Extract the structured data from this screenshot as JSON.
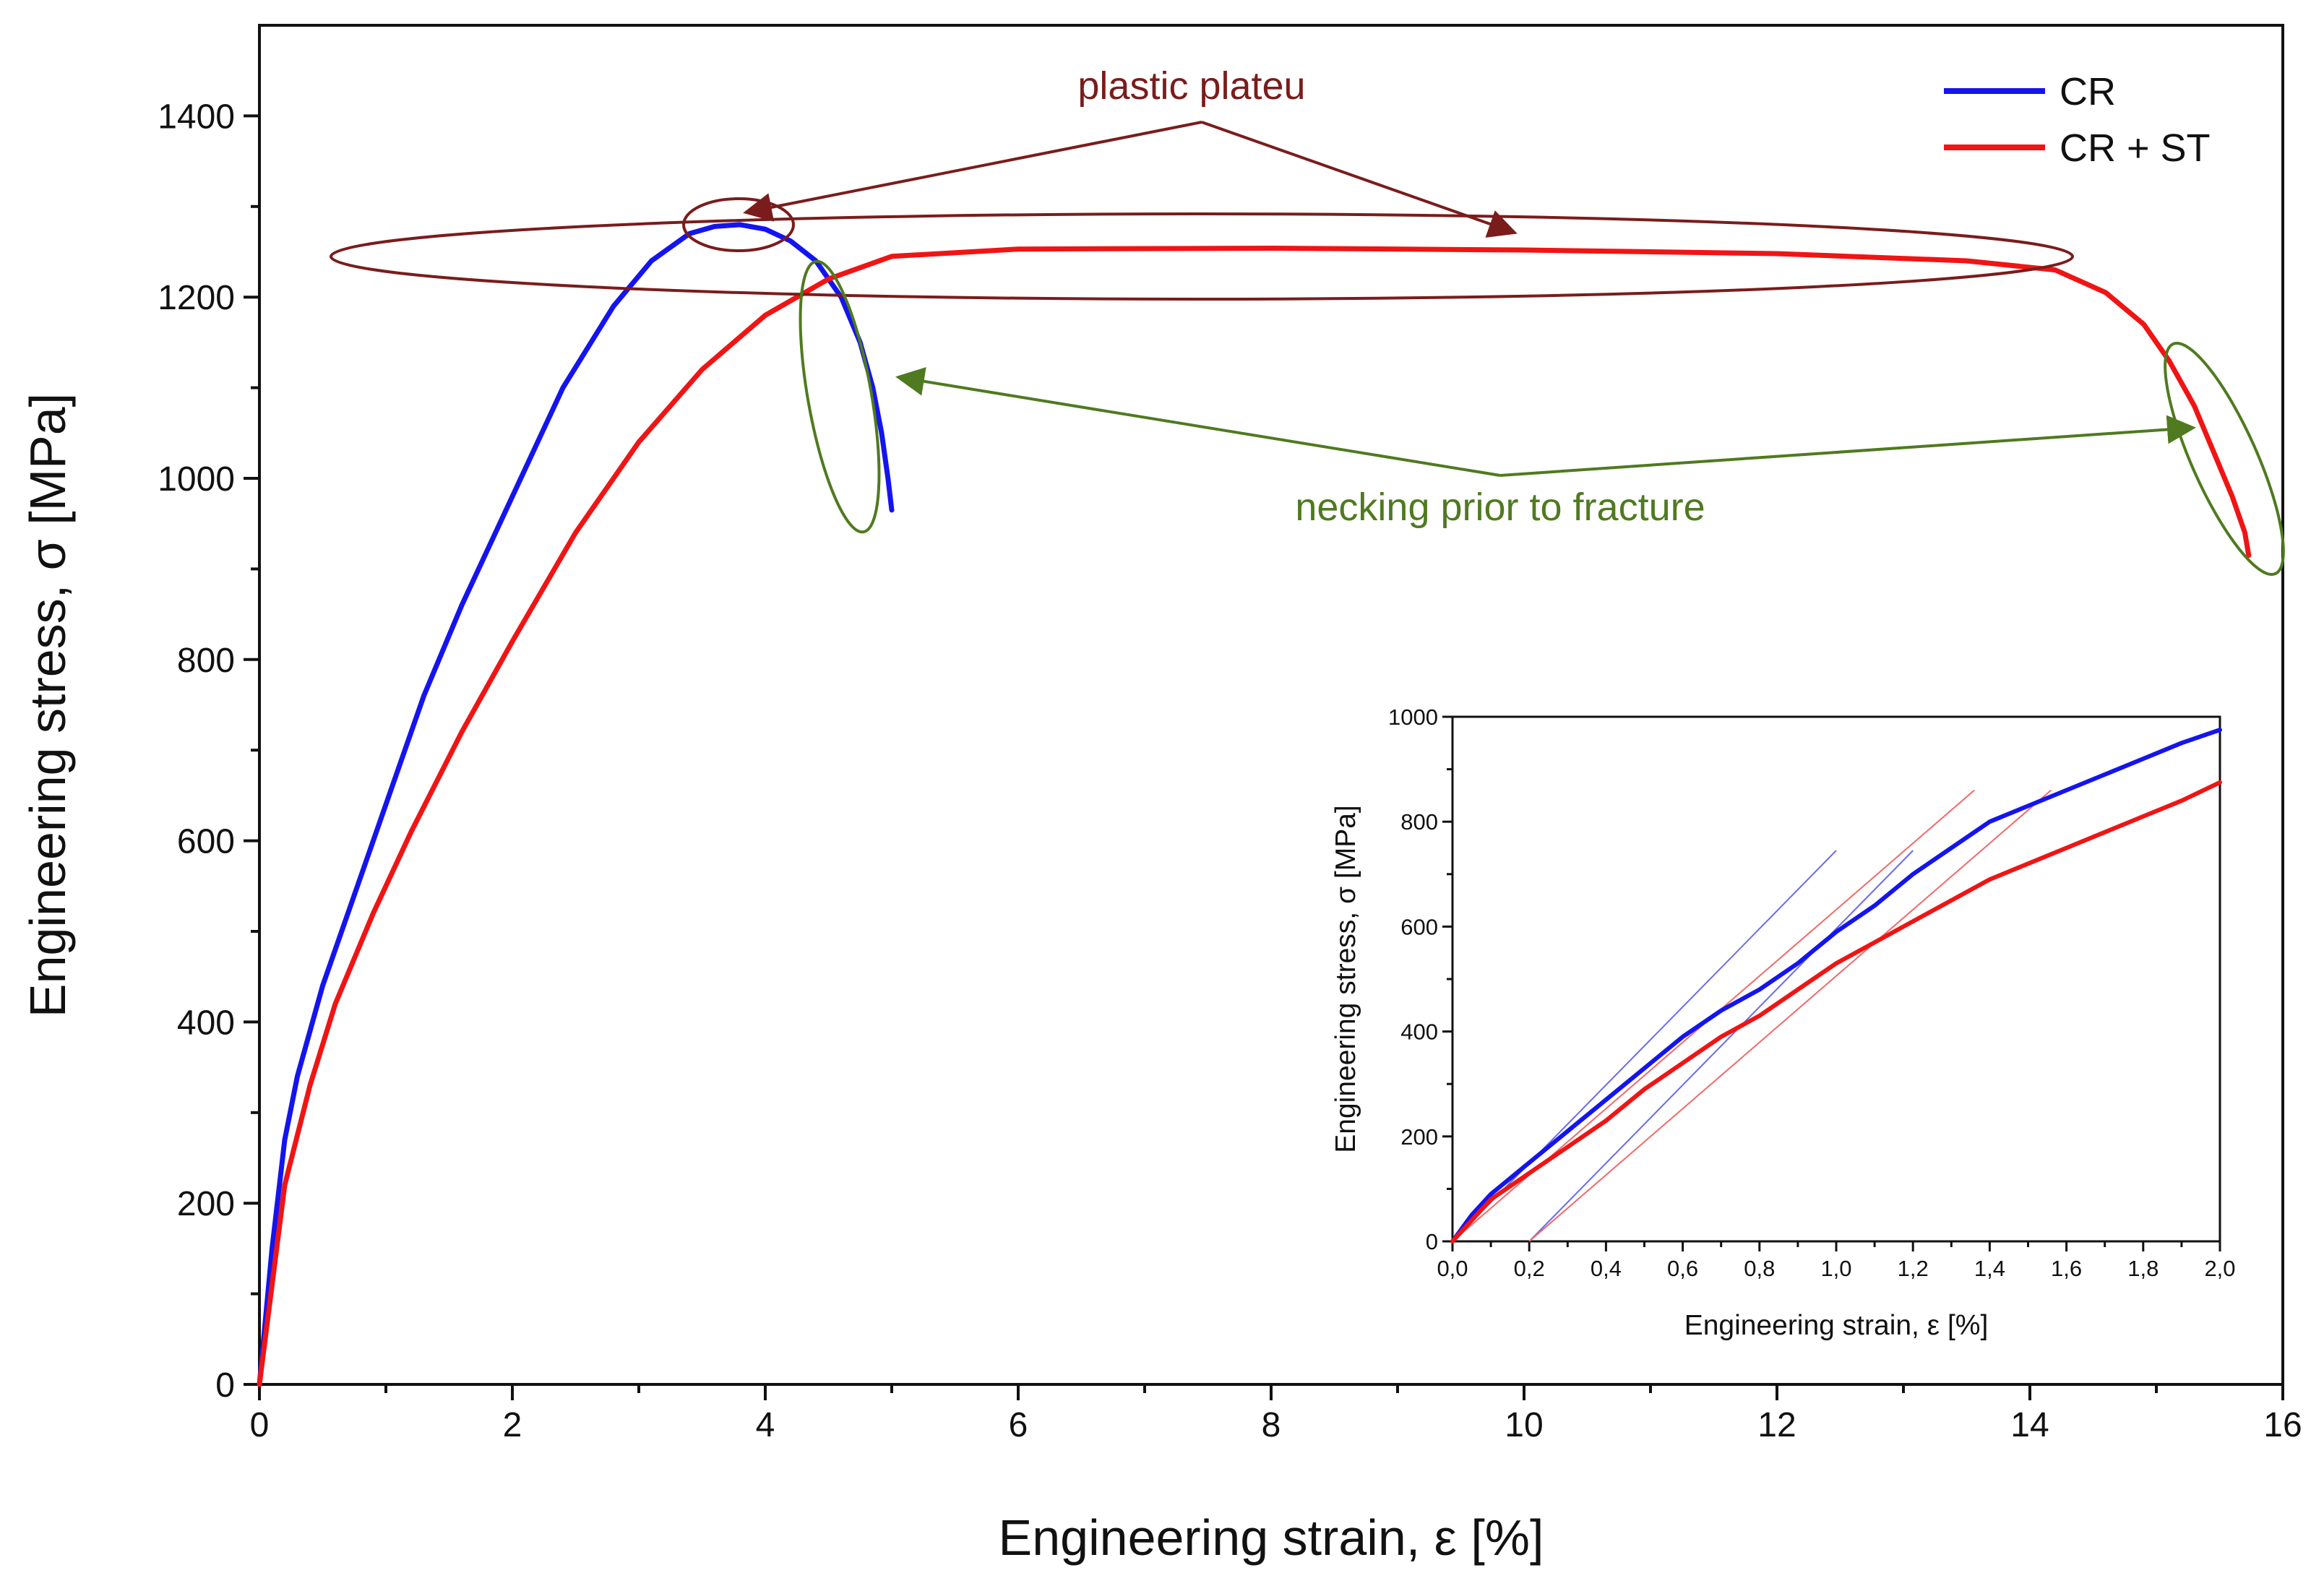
{
  "chart_data": [
    {
      "type": "line",
      "title": "",
      "xlabel": "Engineering strain, ε [%]",
      "ylabel": "Engineering stress, σ [MPa]",
      "xlim": [
        0,
        16
      ],
      "ylim": [
        0,
        1500
      ],
      "xticks": [
        0,
        2,
        4,
        6,
        8,
        10,
        12,
        14,
        16
      ],
      "xtick_labels": [
        "0",
        "2",
        "4",
        "6",
        "8",
        "10",
        "12",
        "14",
        "16"
      ],
      "yticks": [
        0,
        200,
        400,
        600,
        800,
        1000,
        1200,
        1400
      ],
      "ytick_labels": [
        "0",
        "200",
        "400",
        "600",
        "800",
        "1000",
        "1200",
        "1400"
      ],
      "legend_position": "top-right",
      "series": [
        {
          "name": "CR",
          "color": "#1414f0",
          "x": [
            0,
            0.1,
            0.2,
            0.3,
            0.5,
            0.7,
            1.0,
            1.3,
            1.6,
            2.0,
            2.4,
            2.8,
            3.1,
            3.4,
            3.6,
            3.8,
            4.0,
            4.2,
            4.4,
            4.6,
            4.75,
            4.85,
            4.92,
            4.97,
            5.0
          ],
          "y": [
            0,
            150,
            270,
            340,
            440,
            520,
            640,
            760,
            860,
            980,
            1100,
            1190,
            1240,
            1270,
            1278,
            1280,
            1275,
            1262,
            1240,
            1200,
            1150,
            1100,
            1050,
            1000,
            965
          ]
        },
        {
          "name": "CR + ST",
          "color": "#f01414",
          "x": [
            0,
            0.1,
            0.2,
            0.4,
            0.6,
            0.9,
            1.2,
            1.6,
            2.0,
            2.5,
            3.0,
            3.5,
            4.0,
            4.5,
            5.0,
            6.0,
            8.0,
            10.0,
            12.0,
            13.5,
            14.2,
            14.6,
            14.9,
            15.1,
            15.3,
            15.45,
            15.6,
            15.7,
            15.73
          ],
          "y": [
            0,
            110,
            220,
            330,
            420,
            520,
            610,
            720,
            820,
            940,
            1040,
            1120,
            1180,
            1220,
            1245,
            1253,
            1254,
            1252,
            1248,
            1240,
            1230,
            1205,
            1170,
            1130,
            1080,
            1030,
            980,
            940,
            915
          ]
        }
      ],
      "annotations": [
        {
          "text": "plastic plateu",
          "color": "#7a1c1c"
        },
        {
          "text": "necking prior to fracture",
          "color": "#4f7a1f"
        }
      ]
    },
    {
      "type": "line",
      "title": "",
      "xlabel": "Engineering strain, ε [%]",
      "ylabel": "Engineering stress, σ [MPa]",
      "xlim": [
        0,
        2.0
      ],
      "ylim": [
        0,
        1000
      ],
      "xticks": [
        0,
        0.2,
        0.4,
        0.6,
        0.8,
        1.0,
        1.2,
        1.4,
        1.6,
        1.8,
        2.0
      ],
      "xtick_labels": [
        "0,0",
        "0,2",
        "0,4",
        "0,6",
        "0,8",
        "1,0",
        "1,2",
        "1,4",
        "1,6",
        "1,8",
        "2,0"
      ],
      "yticks": [
        0,
        200,
        400,
        600,
        800,
        1000
      ],
      "ytick_labels": [
        "0",
        "200",
        "400",
        "600",
        "800",
        "1000"
      ],
      "series": [
        {
          "name": "CR",
          "color": "#1414f0",
          "x": [
            0,
            0.05,
            0.1,
            0.2,
            0.3,
            0.4,
            0.5,
            0.6,
            0.7,
            0.8,
            0.9,
            1.0,
            1.1,
            1.2,
            1.3,
            1.4,
            1.5,
            1.6,
            1.7,
            1.8,
            1.9,
            2.0
          ],
          "y": [
            0,
            50,
            90,
            150,
            210,
            270,
            330,
            390,
            440,
            480,
            530,
            590,
            640,
            700,
            750,
            800,
            830,
            860,
            890,
            920,
            950,
            975
          ]
        },
        {
          "name": "CR + ST",
          "color": "#f01414",
          "x": [
            0,
            0.05,
            0.1,
            0.2,
            0.3,
            0.4,
            0.5,
            0.6,
            0.7,
            0.8,
            0.9,
            1.0,
            1.1,
            1.2,
            1.3,
            1.4,
            1.5,
            1.6,
            1.7,
            1.8,
            1.9,
            2.0
          ],
          "y": [
            0,
            40,
            80,
            130,
            180,
            230,
            290,
            340,
            390,
            430,
            480,
            530,
            570,
            610,
            650,
            690,
            720,
            750,
            780,
            810,
            840,
            875
          ]
        }
      ],
      "offset_lines": [
        {
          "name": "CR elastic fit",
          "color": "#6a6af0",
          "x": [
            0.0,
            1.0
          ],
          "y": [
            0,
            745
          ]
        },
        {
          "name": "CR 0.2% offset",
          "color": "#6a6af0",
          "x": [
            0.2,
            1.2
          ],
          "y": [
            0,
            745
          ]
        },
        {
          "name": "CR + ST elastic fit",
          "color": "#f06a6a",
          "x": [
            0.0,
            1.36
          ],
          "y": [
            0,
            860
          ]
        },
        {
          "name": "CR + ST 0.2% offset",
          "color": "#f06a6a",
          "x": [
            0.2,
            1.56
          ],
          "y": [
            0,
            860
          ]
        }
      ]
    }
  ]
}
